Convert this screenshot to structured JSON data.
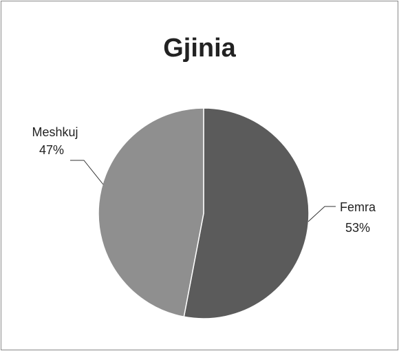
{
  "chart_data": {
    "type": "pie",
    "title": "Gjinia",
    "categories": [
      "Femra",
      "Meshkuj"
    ],
    "values": [
      53,
      47
    ],
    "value_labels": [
      "53%",
      "47%"
    ],
    "colors": [
      "#5b5b5b",
      "#8f8f8f"
    ]
  }
}
